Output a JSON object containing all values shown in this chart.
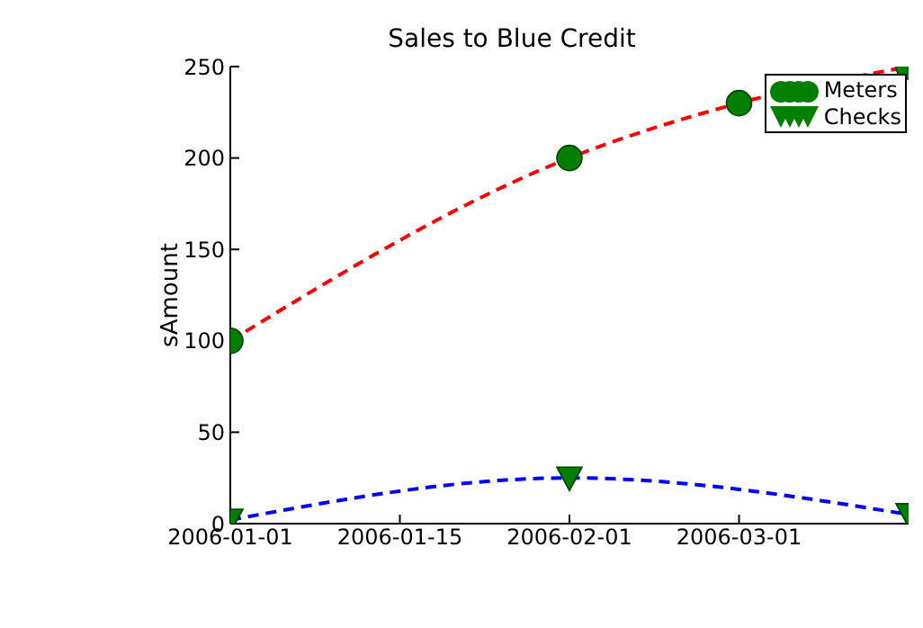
{
  "chart_data": {
    "type": "line",
    "title": "Sales to Blue Credit",
    "ylabel": "sAmount",
    "categories": [
      "2006-01-01",
      "2006-01-15",
      "2006-02-01",
      "2006-03-01",
      null
    ],
    "series": [
      {
        "name": "Meters",
        "color": "#ff0000",
        "colors": [
          "#007f00",
          null,
          "#007f00",
          "#007f00",
          "#007f00"
        ],
        "marker": "circle",
        "values": [
          100,
          null,
          200,
          230,
          250
        ]
      },
      {
        "name": "Checks",
        "color": "#0000ff",
        "colors": [
          "#007f00",
          null,
          "#007f00",
          null,
          "#007f00"
        ],
        "marker": "triangle",
        "values": [
          2,
          null,
          25,
          null,
          5
        ]
      }
    ],
    "ylim": [
      0,
      250
    ],
    "yticks": [
      0,
      50,
      100,
      150,
      200,
      250
    ],
    "grid": false,
    "legend": "top right",
    "line_style": "dashed"
  }
}
